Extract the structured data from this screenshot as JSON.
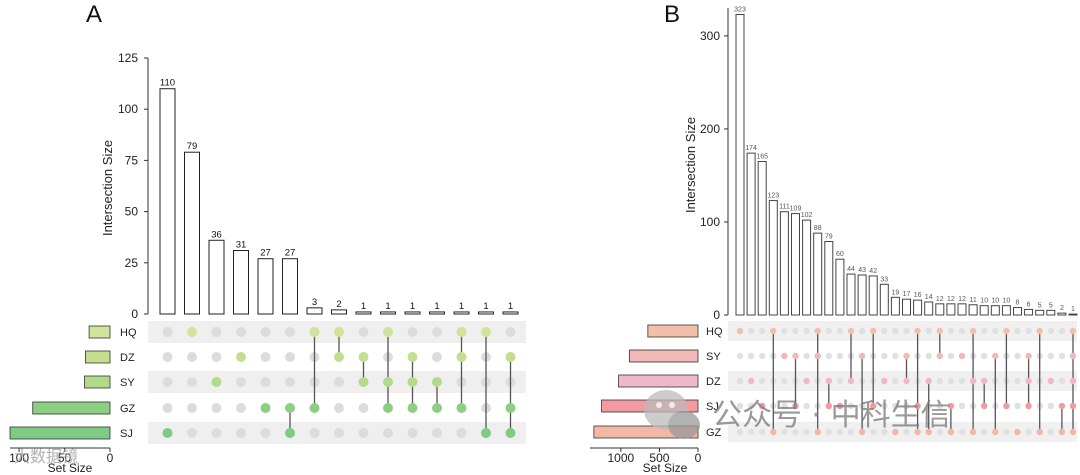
{
  "panels": [
    {
      "label": "A",
      "chart_data": {
        "type": "bar",
        "title": "",
        "ylabel": "Intersection Size",
        "set_size_label": "Set Size",
        "ylim": [
          0,
          125
        ],
        "yticks": [
          0,
          25,
          50,
          75,
          100,
          125
        ],
        "intersection_values": [
          110,
          79,
          36,
          31,
          27,
          27,
          3,
          2,
          1,
          1,
          1,
          1,
          1,
          1,
          1
        ],
        "sets": [
          "HQ",
          "DZ",
          "SY",
          "GZ",
          "SJ"
        ],
        "set_sizes": [
          23,
          27,
          28,
          85,
          110
        ],
        "set_size_ticks": [
          "100",
          "50",
          "0"
        ],
        "set_size_tick_values": [
          100,
          50,
          0
        ],
        "set_size_max": 110,
        "set_colors": [
          "#cfe39a",
          "#c4de8e",
          "#b3d98a",
          "#8ccf80",
          "#7fcb86"
        ],
        "matrix": [
          [
            4
          ],
          [
            0
          ],
          [
            2
          ],
          [
            1
          ],
          [
            3
          ],
          [
            3,
            4
          ],
          [
            0,
            3
          ],
          [
            0,
            1
          ],
          [
            1,
            2
          ],
          [
            0,
            2,
            3
          ],
          [
            1,
            2,
            3
          ],
          [
            2,
            3
          ],
          [
            0,
            1,
            3
          ],
          [
            0,
            4
          ],
          [
            1,
            3,
            4
          ]
        ]
      }
    },
    {
      "label": "B",
      "chart_data": {
        "type": "bar",
        "title": "",
        "ylabel": "Intersection Size",
        "set_size_label": "Set Size",
        "ylim": [
          0,
          330
        ],
        "yticks": [
          0,
          100,
          200,
          300
        ],
        "intersection_values": [
          323,
          174,
          165,
          123,
          111,
          109,
          102,
          88,
          79,
          60,
          44,
          43,
          42,
          33,
          19,
          17,
          16,
          14,
          12,
          12,
          12,
          11,
          10,
          10,
          10,
          8,
          6,
          5,
          5,
          2,
          1
        ],
        "sets": [
          "HQ",
          "SY",
          "DZ",
          "SJ",
          "GZ"
        ],
        "set_sizes": [
          650,
          890,
          1030,
          1250,
          1350
        ],
        "set_size_ticks": [
          "1000",
          "500",
          "0"
        ],
        "set_size_tick_values": [
          1000,
          500,
          0
        ],
        "set_size_max": 1400,
        "set_colors": [
          "#f2c0a8",
          "#f0b8b6",
          "#f0b8c6",
          "#f29aa0",
          "#f2b8a6"
        ],
        "matrix": [
          [
            0
          ],
          [
            2
          ],
          [
            3
          ],
          [
            0,
            4
          ],
          [
            1
          ],
          [
            1,
            3
          ],
          [
            2
          ],
          [
            0,
            1,
            4
          ],
          [
            2,
            3
          ],
          [
            3
          ],
          [
            0,
            2
          ],
          [
            1,
            4
          ],
          [
            0,
            3
          ],
          [
            2
          ],
          [
            4
          ],
          [
            1,
            2
          ],
          [
            0,
            3,
            4
          ],
          [
            2,
            4
          ],
          [
            0,
            1
          ],
          [
            3,
            4
          ],
          [
            1
          ],
          [
            0,
            2,
            4
          ],
          [
            2,
            3
          ],
          [
            1,
            4
          ],
          [
            0,
            3
          ],
          [
            4
          ],
          [
            1,
            2,
            3
          ],
          [
            0,
            4
          ],
          [
            2
          ],
          [
            3,
            4
          ],
          [
            0,
            1,
            2,
            3,
            4
          ]
        ]
      }
    }
  ],
  "watermarks": {
    "main": "公众号 · 中科生信",
    "corner": "大数据镜"
  }
}
